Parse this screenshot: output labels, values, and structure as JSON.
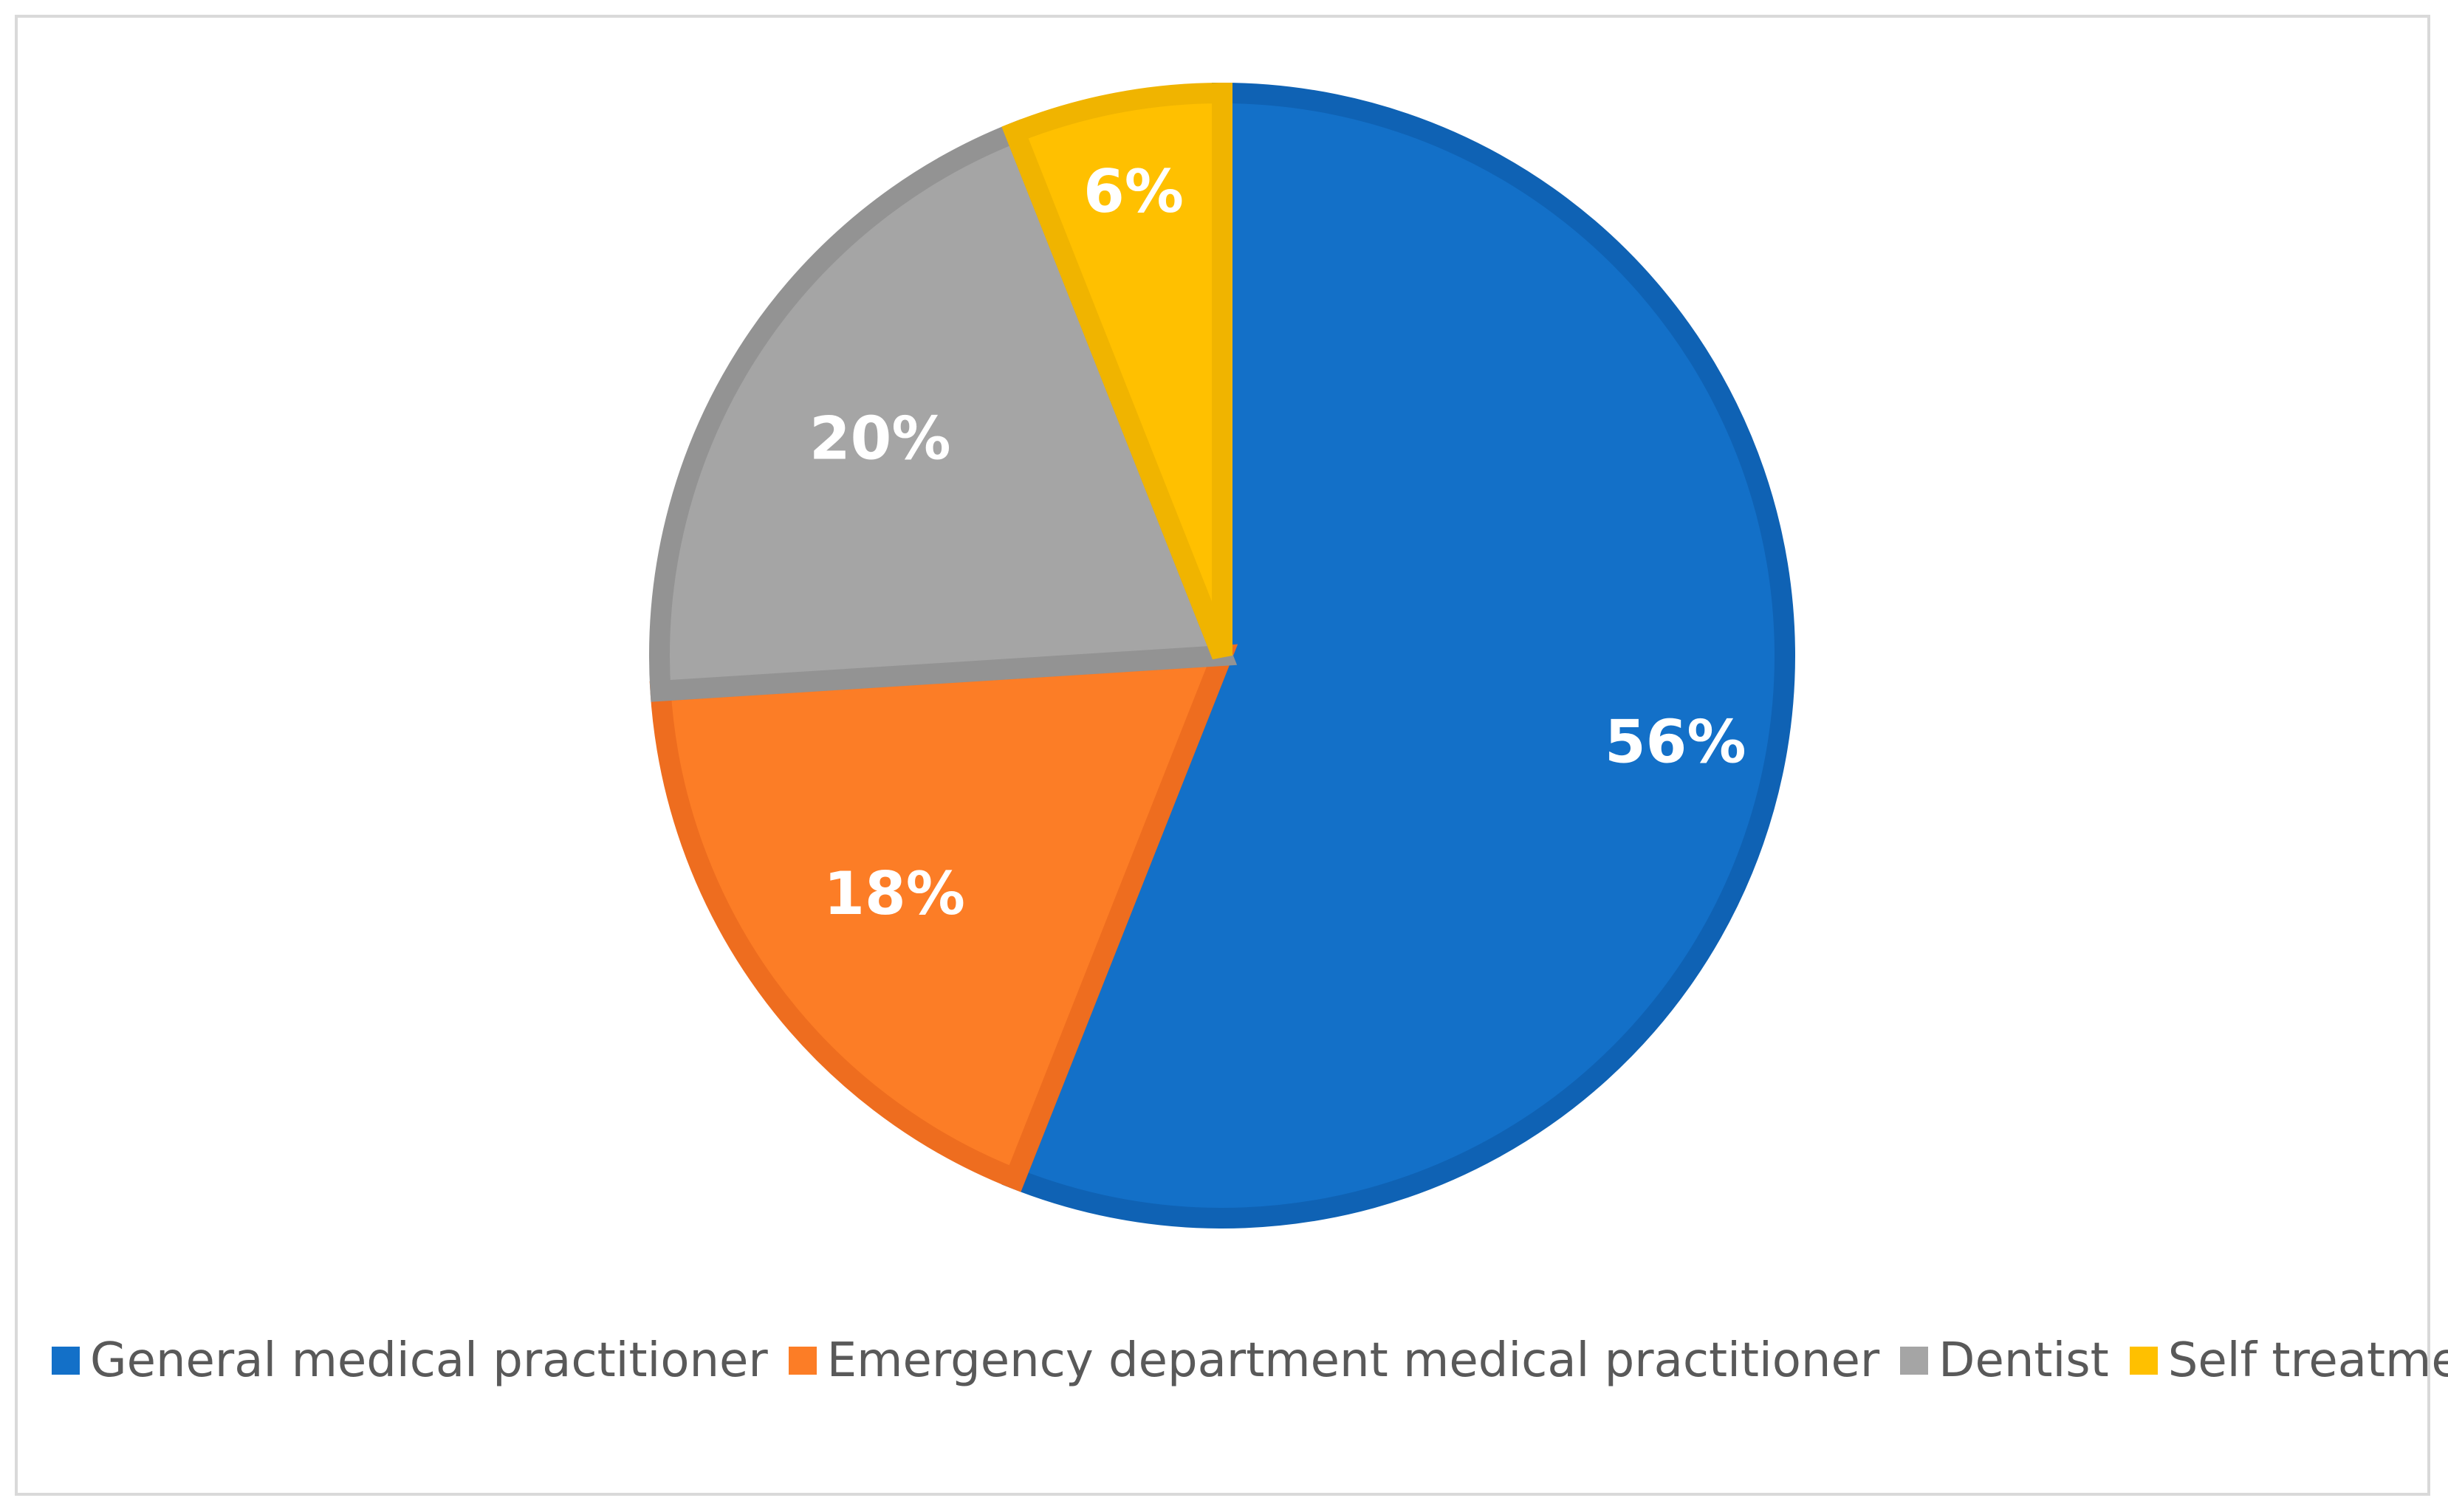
{
  "chart_data": {
    "type": "pie",
    "title": "",
    "legend_position": "bottom",
    "slices": [
      {
        "name": "General medical practitioner",
        "value": 56,
        "label": "56%",
        "color": "#1370c8",
        "stroke": "#0f62b4"
      },
      {
        "name": "Emergency department medical practitioner",
        "value": 18,
        "label": "18%",
        "color": "#fc7d26",
        "stroke": "#ee6d1f"
      },
      {
        "name": "Dentist",
        "value": 20,
        "label": "20%",
        "color": "#a5a5a5",
        "stroke": "#939393"
      },
      {
        "name": "Self treatment",
        "value": 6,
        "label": "6%",
        "color": "#ffc000",
        "stroke": "#f0b400"
      }
    ]
  }
}
